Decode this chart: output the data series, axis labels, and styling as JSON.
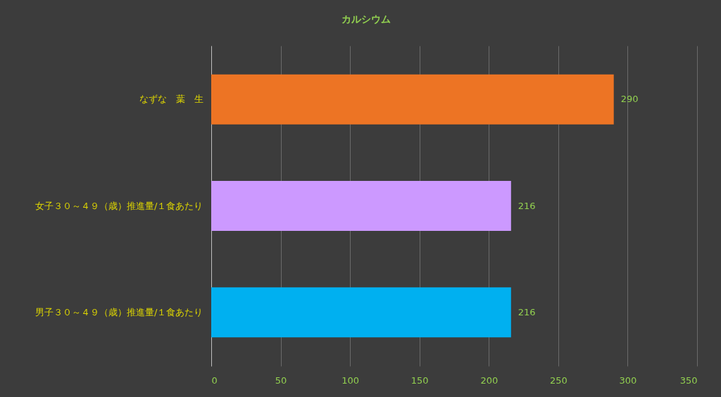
{
  "chart_data": {
    "type": "bar",
    "orientation": "horizontal",
    "title": "カルシウム",
    "categories": [
      "なずな　葉　生",
      "女子３０～４９（歳）推進量/１食あたり",
      "男子３０～４９（歳）推進量/１食あたり"
    ],
    "values": [
      290,
      216,
      216
    ],
    "colors": [
      "#ed7424",
      "#cc99ff",
      "#00b0f0"
    ],
    "xlim": [
      0,
      350
    ],
    "xticks": [
      0,
      50,
      100,
      150,
      200,
      250,
      300,
      350
    ],
    "grid": "x",
    "data_labels": true
  }
}
